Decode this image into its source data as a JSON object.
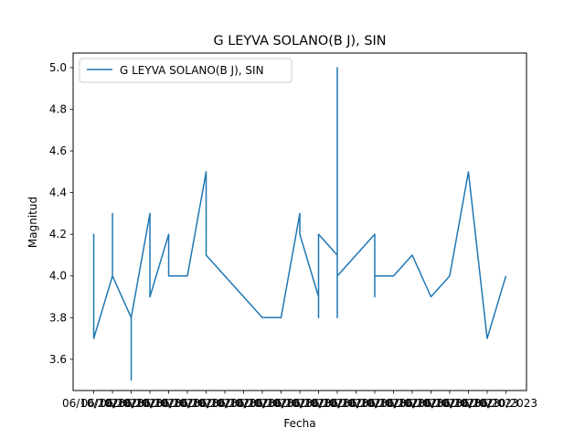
{
  "chart_data": {
    "type": "line",
    "title": "G LEYVA SOLANO(B J), SIN",
    "xlabel": "Fecha",
    "ylabel": "Magnitud",
    "ylim": [
      3.45,
      5.07
    ],
    "yticks": [
      3.6,
      3.8,
      4.0,
      4.2,
      4.4,
      4.6,
      4.8,
      5.0
    ],
    "ytick_labels": [
      "3.6",
      "3.8",
      "4.0",
      "4.2",
      "4.4",
      "4.6",
      "4.8",
      "5.0"
    ],
    "xticks": [
      0,
      1,
      2,
      3,
      4,
      5,
      6,
      7,
      8,
      9,
      10,
      11,
      12,
      13,
      14,
      15,
      16,
      17,
      18,
      19,
      20,
      21,
      22
    ],
    "xtick_labels": [
      "06/10/2023",
      "06/10/2023",
      "06/10/2023",
      "06/10/2023",
      "06/10/2023",
      "06/10/2023",
      "06/10/2023",
      "06/10/2023",
      "06/10/2023",
      "06/10/2023",
      "06/10/2023",
      "06/10/2023",
      "06/10/2023",
      "06/10/2023",
      "06/10/2023",
      "06/10/2023",
      "06/10/2023",
      "06/10/2023",
      "06/10/2023",
      "06/10/2023",
      "06/10/2023",
      "06/10/2023",
      "06/10/2023"
    ],
    "xlim": [
      -1.1,
      23.1
    ],
    "grid": false,
    "legend_position": "upper-left",
    "series": [
      {
        "name": "G LEYVA SOLANO(B J), SIN",
        "color": "#1f77b4",
        "points": [
          [
            0,
            4.1
          ],
          [
            0,
            4.2
          ],
          [
            0,
            4.15
          ],
          [
            0,
            3.7
          ],
          [
            1,
            4.0
          ],
          [
            1,
            4.3
          ],
          [
            1,
            4.0
          ],
          [
            2,
            3.8
          ],
          [
            2,
            3.5
          ],
          [
            2,
            3.8
          ],
          [
            3,
            4.3
          ],
          [
            3,
            3.9
          ],
          [
            4,
            4.2
          ],
          [
            4,
            4.0
          ],
          [
            5,
            4.0
          ],
          [
            6,
            4.5
          ],
          [
            6,
            4.1
          ],
          [
            9,
            3.8
          ],
          [
            10,
            3.8
          ],
          [
            11,
            4.3
          ],
          [
            11,
            4.2
          ],
          [
            12,
            3.9
          ],
          [
            12,
            3.8
          ],
          [
            12,
            4.2
          ],
          [
            13,
            4.1
          ],
          [
            13,
            5.0
          ],
          [
            13,
            3.8
          ],
          [
            13,
            4.0
          ],
          [
            15,
            4.2
          ],
          [
            15,
            3.9
          ],
          [
            15,
            4.0
          ],
          [
            16,
            4.0
          ],
          [
            17,
            4.1
          ],
          [
            18,
            3.9
          ],
          [
            19,
            4.0
          ],
          [
            20,
            4.5
          ],
          [
            21,
            3.7
          ],
          [
            22,
            4.0
          ]
        ]
      }
    ]
  }
}
